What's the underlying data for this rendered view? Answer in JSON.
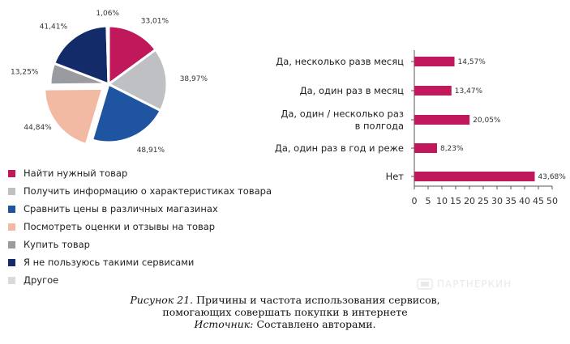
{
  "colors": {
    "crimson": "#c0185a",
    "light_gray": "#bfc0c4",
    "blue": "#1f55a0",
    "peach": "#f2b9a3",
    "mid_gray": "#9a9ba0",
    "navy": "#132b68",
    "pale_gray": "#dadada"
  },
  "chart_data": [
    {
      "type": "pie",
      "slices": [
        {
          "label": "Найти нужный товар",
          "value": 33.01,
          "value_label": "33,01%",
          "color": "#c0185a",
          "exploded": false
        },
        {
          "label": "Получить информацию о характеристиках товара",
          "value": 38.97,
          "value_label": "38,97%",
          "color": "#bfc0c4",
          "exploded": false
        },
        {
          "label": "Сравнить цены в различных магазинах",
          "value": 48.91,
          "value_label": "48,91%",
          "color": "#1f55a0",
          "exploded": false
        },
        {
          "label": "Посмотреть оценки и отзывы на товар",
          "value": 44.84,
          "value_label": "44,84%",
          "color": "#f2b9a3",
          "exploded": true
        },
        {
          "label": "Купить товар",
          "value": 13.25,
          "value_label": "13,25%",
          "color": "#9a9ba0",
          "exploded": false
        },
        {
          "label": "Я не пользуюсь такими сервисами",
          "value": 41.41,
          "value_label": "41,41%",
          "color": "#132b68",
          "exploded": false
        },
        {
          "label": "Другое",
          "value": 1.06,
          "value_label": "1,06%",
          "color": "#dadada",
          "exploded": false
        }
      ],
      "legend_position": "bottom-left"
    },
    {
      "type": "bar",
      "orientation": "horizontal",
      "categories": [
        [
          "Да, несколько разв месяц"
        ],
        [
          "Да, один раз в месяц"
        ],
        [
          "Да, один / несколько раз",
          "в полгода"
        ],
        [
          "Да, один раз в год и реже"
        ],
        [
          "Нет"
        ]
      ],
      "values": [
        14.57,
        13.47,
        20.05,
        8.23,
        43.68
      ],
      "value_labels": [
        "14,57%",
        "13,47%",
        "20,05%",
        "8,23%",
        "43,68%"
      ],
      "xlim": [
        0,
        50
      ],
      "ticks": [
        "0",
        "5",
        "10",
        "15",
        "20",
        "25",
        "30",
        "35",
        "40",
        "45",
        "50"
      ],
      "color": "#c0185a",
      "grid": false
    }
  ],
  "caption": {
    "line1_italic": "Рисунок 21.",
    "line1_text": " Причины и частота использования сервисов,",
    "line2": "помогающих совершать покупки в интернете",
    "line3_italic": "Источник:",
    "line3_text": " Составлено авторами."
  },
  "watermark": {
    "text": "ПАРТНЕРКИН",
    "icon": "partnerkin-logo-icon"
  }
}
